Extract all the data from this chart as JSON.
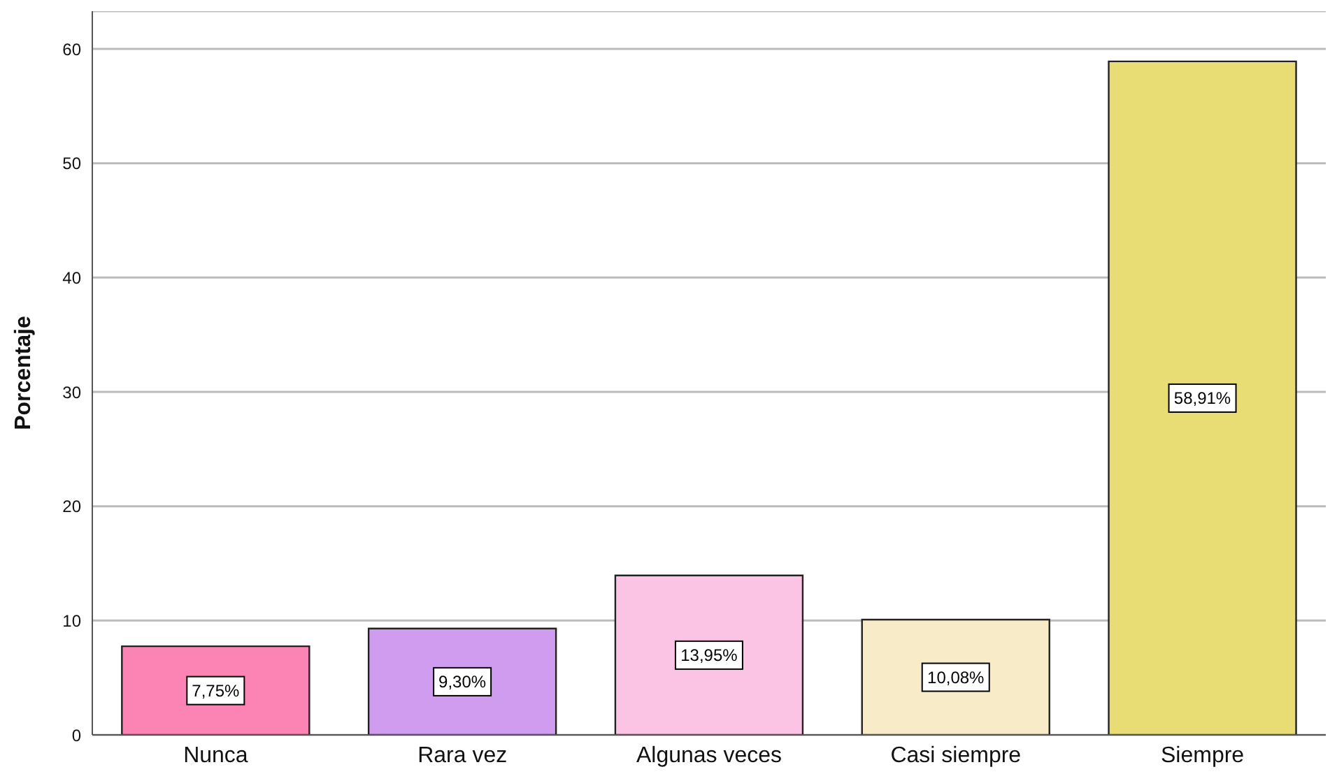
{
  "chart_data": {
    "type": "bar",
    "ylabel": "Porcentaje",
    "categories": [
      "Nunca",
      "Rara vez",
      "Algunas veces",
      "Casi siempre",
      "Siempre"
    ],
    "values": [
      7.75,
      9.3,
      13.95,
      10.08,
      58.91
    ],
    "colors": [
      "#fc84b4",
      "#d09cf0",
      "#fcc4e4",
      "#f8ecc8",
      "#e8dc74"
    ],
    "value_labels": [
      "7,75%",
      "9,30%",
      "13,95%",
      "10,08%",
      "58,91%"
    ],
    "ylim": [
      0,
      63.3
    ],
    "yticks": [
      0,
      10,
      20,
      30,
      40,
      50,
      60
    ],
    "grid": "y",
    "legend": false
  }
}
